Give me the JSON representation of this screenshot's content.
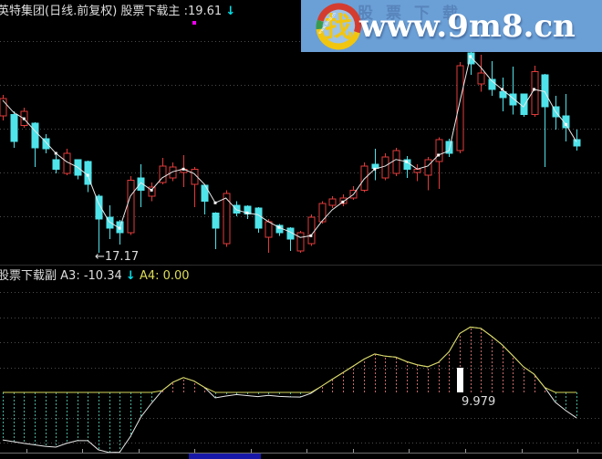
{
  "main_header": {
    "title": "英特集团(日线.前复权)",
    "indicator": "股票下载主",
    "value": ":19.61",
    "arrow": "↓"
  },
  "sub_header": {
    "name": "股票下载副",
    "a3": "A3: -10.34",
    "arrow": "↓",
    "a4": "A4: 0.00"
  },
  "watermark": {
    "url_text": "www.9m8.cn",
    "ghost_text": "股票下载",
    "logo_glyph": "找",
    "logo_mini_text": "www.9m8.cn",
    "banner_bg": "#6ba0d6"
  },
  "colors": {
    "up": "#e23b3b",
    "down": "#4fe3ea",
    "main_line": "#eaeaea",
    "a3_line": "#eaeaea",
    "a4_line": "#d6d65a",
    "hatch_neg": "#46b39a",
    "hatch_pos": "#c76a6a",
    "grid": "#4b4b4b",
    "label": "#dcdcdc",
    "signal_bar": "#ffffff"
  },
  "chart_data": [
    {
      "type": "candlestick",
      "title": "英特集团 日线 前复权 (主图)",
      "bars": 55,
      "ylim": [
        16.9,
        22.4
      ],
      "gridline_prices": [
        18,
        19,
        20,
        21,
        22
      ],
      "low_label": {
        "text": "←17.17",
        "bar": 9,
        "price": 17.17
      },
      "last_close": 19.61,
      "candles": [
        [
          20.29,
          20.77,
          20.19,
          20.69
        ],
        [
          20.33,
          20.4,
          19.57,
          19.71
        ],
        [
          20.08,
          20.48,
          20.02,
          20.4
        ],
        [
          20.13,
          20.15,
          19.13,
          19.57
        ],
        [
          19.77,
          19.88,
          19.44,
          19.54
        ],
        [
          19.29,
          19.4,
          18.98,
          19.08
        ],
        [
          18.98,
          19.54,
          18.94,
          19.44
        ],
        [
          19.29,
          19.31,
          18.85,
          18.94
        ],
        [
          19.25,
          19.27,
          18.56,
          18.73
        ],
        [
          18.46,
          18.5,
          17.17,
          17.94
        ],
        [
          17.98,
          18.25,
          17.48,
          17.73
        ],
        [
          17.88,
          17.92,
          17.36,
          17.63
        ],
        [
          17.63,
          18.92,
          17.58,
          18.83
        ],
        [
          18.88,
          19.19,
          18.21,
          18.6
        ],
        [
          18.46,
          18.77,
          18.35,
          18.67
        ],
        [
          18.77,
          19.34,
          18.73,
          19.15
        ],
        [
          18.88,
          19.23,
          18.81,
          19.13
        ],
        [
          19.0,
          19.4,
          18.67,
          19.08
        ],
        [
          18.73,
          19.13,
          18.21,
          19.08
        ],
        [
          18.71,
          18.73,
          18.04,
          18.35
        ],
        [
          18.08,
          18.1,
          17.25,
          17.73
        ],
        [
          17.38,
          18.6,
          17.31,
          18.52
        ],
        [
          18.25,
          18.35,
          18.0,
          18.08
        ],
        [
          18.23,
          18.25,
          17.94,
          18.06
        ],
        [
          18.19,
          18.21,
          17.63,
          17.73
        ],
        [
          17.52,
          17.94,
          17.17,
          17.88
        ],
        [
          17.79,
          17.83,
          17.56,
          17.63
        ],
        [
          17.73,
          17.75,
          17.21,
          17.48
        ],
        [
          17.21,
          17.67,
          17.17,
          17.63
        ],
        [
          17.38,
          18.04,
          17.33,
          17.98
        ],
        [
          17.88,
          18.35,
          17.84,
          18.29
        ],
        [
          18.25,
          18.46,
          18.19,
          18.4
        ],
        [
          18.29,
          18.5,
          18.23,
          18.42
        ],
        [
          18.42,
          18.69,
          18.38,
          18.6
        ],
        [
          18.6,
          19.23,
          18.56,
          19.15
        ],
        [
          19.19,
          19.54,
          18.83,
          19.1
        ],
        [
          18.88,
          19.44,
          18.83,
          19.36
        ],
        [
          18.98,
          19.57,
          18.92,
          19.5
        ],
        [
          19.29,
          19.38,
          18.88,
          19.08
        ],
        [
          19.0,
          19.19,
          18.81,
          19.08
        ],
        [
          18.94,
          19.36,
          18.6,
          19.29
        ],
        [
          19.25,
          19.81,
          18.63,
          19.75
        ],
        [
          19.71,
          19.77,
          19.36,
          19.44
        ],
        [
          19.5,
          21.52,
          19.44,
          21.44
        ],
        [
          21.73,
          21.77,
          21.23,
          21.48
        ],
        [
          21.02,
          21.69,
          20.85,
          21.27
        ],
        [
          21.13,
          21.54,
          20.75,
          20.9
        ],
        [
          20.85,
          21.17,
          20.4,
          20.71
        ],
        [
          20.79,
          21.42,
          20.33,
          20.54
        ],
        [
          20.79,
          20.81,
          20.27,
          20.33
        ],
        [
          20.33,
          21.44,
          20.27,
          21.31
        ],
        [
          21.23,
          21.25,
          19.13,
          20.5
        ],
        [
          20.5,
          20.75,
          19.98,
          20.27
        ],
        [
          20.29,
          20.79,
          19.71,
          20.02
        ],
        [
          19.75,
          19.98,
          19.5,
          19.61
        ]
      ],
      "white_line": [
        20.65,
        20.38,
        20.23,
        19.96,
        19.71,
        19.44,
        19.25,
        19.13,
        18.94,
        18.31,
        17.88,
        17.73,
        18.46,
        18.77,
        18.6,
        18.88,
        19.02,
        19.08,
        18.98,
        18.73,
        18.31,
        18.42,
        18.15,
        18.08,
        18.04,
        17.88,
        17.75,
        17.65,
        17.52,
        17.56,
        17.88,
        18.15,
        18.33,
        18.5,
        18.85,
        19.08,
        19.15,
        19.3,
        19.25,
        19.08,
        19.15,
        19.4,
        19.5,
        20.6,
        21.65,
        21.4,
        21.1,
        20.9,
        20.7,
        20.5,
        20.9,
        20.85,
        20.4,
        20.1,
        19.7
      ]
    },
    {
      "type": "indicator",
      "name": "股票下载副",
      "ylim": [
        -26,
        42
      ],
      "series": [
        {
          "name": "A3",
          "color": "#eaeaea",
          "last": -10.34,
          "values": [
            -19.3,
            -20.0,
            -20.7,
            -21.3,
            -21.9,
            -22.2,
            -20.7,
            -19.6,
            -19.6,
            -23.3,
            -24.4,
            -24.3,
            -18.0,
            -10.0,
            -4.4,
            0.7,
            4.1,
            6.0,
            4.6,
            2.0,
            -2.2,
            -1.5,
            -0.9,
            -1.3,
            -1.7,
            -1.2,
            -1.6,
            -1.8,
            -1.9,
            -0.4,
            2.5,
            5.3,
            8.0,
            10.7,
            13.5,
            15.6,
            14.7,
            14.3,
            12.5,
            11.2,
            10.4,
            12.2,
            16.5,
            23.9,
            26.5,
            26.0,
            22.8,
            19.3,
            14.9,
            10.4,
            7.4,
            2.0,
            -4.0,
            -7.4,
            -10.34
          ]
        },
        {
          "name": "A4",
          "color": "#d6d65a",
          "last": 0.0,
          "values": [
            0,
            0,
            0,
            0,
            0,
            0,
            0,
            0,
            0,
            0,
            0,
            0,
            0,
            0,
            0,
            0.7,
            4.1,
            6.0,
            4.6,
            2.0,
            0,
            0,
            0,
            0,
            0,
            0,
            0,
            0,
            0,
            0,
            2.5,
            5.3,
            8.0,
            10.7,
            13.5,
            15.6,
            14.7,
            14.3,
            12.5,
            11.2,
            10.4,
            12.2,
            16.5,
            23.9,
            26.5,
            26.0,
            22.8,
            19.3,
            14.9,
            10.4,
            7.4,
            2.0,
            0,
            0,
            0
          ]
        }
      ],
      "signal": {
        "bar": 43,
        "value": 9.979,
        "label": "9.979"
      }
    }
  ]
}
